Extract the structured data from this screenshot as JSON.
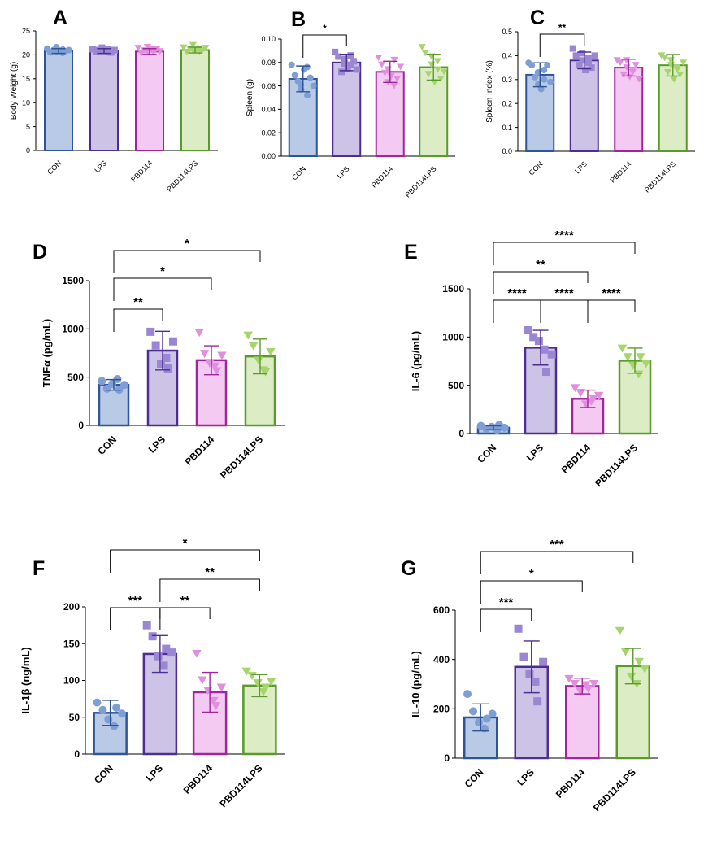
{
  "figure": {
    "groups": [
      "CON",
      "LPS",
      "PBD114",
      "PBD114LPS"
    ],
    "colors": {
      "CON": {
        "fill": "#b9cae6",
        "stroke": "#2f5597",
        "dot": "#7f9fd4"
      },
      "LPS": {
        "fill": "#cdc3e6",
        "stroke": "#4b2e8e",
        "dot": "#9a86d3"
      },
      "PBD114": {
        "fill": "#f4c9f2",
        "stroke": "#a0259a",
        "dot": "#e08fe0"
      },
      "PBD114LPS": {
        "fill": "#dcedc5",
        "stroke": "#5a9a2a",
        "dot": "#a6d56e"
      }
    },
    "markers": {
      "CON": "circle",
      "LPS": "square",
      "PBD114": "triangle-down",
      "PBD114LPS": "triangle-down"
    }
  },
  "chart_data": [
    {
      "id": "A",
      "panel_label": "A",
      "type": "bar",
      "ylabel": "Body Weight (g)",
      "ylim": [
        0,
        25
      ],
      "yticks": [
        0,
        5,
        10,
        15,
        20,
        25
      ],
      "ytick_labels": [
        "0",
        "5",
        "10",
        "15",
        "20",
        "25"
      ],
      "categories": [
        "CON",
        "LPS",
        "PBD114",
        "PBD114LPS"
      ],
      "values": [
        20.8,
        20.8,
        20.7,
        21.0
      ],
      "errors": [
        0.5,
        0.5,
        0.6,
        0.6
      ],
      "points": [
        [
          21.3,
          20.5,
          21.0,
          20.7,
          21.6,
          20.9,
          21.1,
          20.4,
          20.8,
          21.0
        ],
        [
          21.2,
          20.6,
          21.0,
          20.8,
          21.5,
          20.9,
          20.7,
          21.1,
          20.5,
          21.0
        ],
        [
          21.4,
          20.3,
          20.9,
          20.6,
          21.6,
          21.1,
          20.8,
          20.5,
          21.2,
          20.7
        ],
        [
          21.5,
          20.6,
          21.2,
          20.8,
          22.0,
          21.0,
          20.7,
          21.3,
          20.9,
          21.4
        ]
      ],
      "comparisons": []
    },
    {
      "id": "B",
      "panel_label": "B",
      "type": "bar",
      "ylabel": "Spleen (g)",
      "ylim": [
        0,
        0.1
      ],
      "yticks": [
        0,
        0.02,
        0.04,
        0.06,
        0.08,
        0.1
      ],
      "ytick_labels": [
        "0.00",
        "0.02",
        "0.04",
        "0.06",
        "0.08",
        "0.10"
      ],
      "categories": [
        "CON",
        "LPS",
        "PBD114",
        "PBD114LPS"
      ],
      "values": [
        0.066,
        0.08,
        0.072,
        0.076
      ],
      "errors": [
        0.011,
        0.007,
        0.009,
        0.011
      ],
      "points": [
        [
          0.078,
          0.069,
          0.064,
          0.057,
          0.061,
          0.074,
          0.052,
          0.076,
          0.067,
          0.06
        ],
        [
          0.089,
          0.085,
          0.072,
          0.079,
          0.083,
          0.075,
          0.086,
          0.078,
          0.081,
          0.074
        ],
        [
          0.084,
          0.078,
          0.071,
          0.063,
          0.074,
          0.068,
          0.082,
          0.06,
          0.066,
          0.076
        ],
        [
          0.093,
          0.088,
          0.07,
          0.078,
          0.085,
          0.063,
          0.074,
          0.081,
          0.066,
          0.072
        ]
      ],
      "comparisons": [
        {
          "from": 0,
          "to": 1,
          "label": "*",
          "level": 0
        }
      ]
    },
    {
      "id": "C",
      "panel_label": "C",
      "type": "bar",
      "ylabel": "Spleen Index (%)",
      "ylim": [
        0,
        0.5
      ],
      "yticks": [
        0,
        0.1,
        0.2,
        0.3,
        0.4,
        0.5
      ],
      "ytick_labels": [
        "0.0",
        "0.1",
        "0.2",
        "0.3",
        "0.4",
        "0.5"
      ],
      "categories": [
        "CON",
        "LPS",
        "PBD114",
        "PBD114LPS"
      ],
      "values": [
        0.32,
        0.38,
        0.35,
        0.36
      ],
      "errors": [
        0.05,
        0.035,
        0.035,
        0.045
      ],
      "points": [
        [
          0.37,
          0.36,
          0.31,
          0.28,
          0.33,
          0.26,
          0.3,
          0.34,
          0.36,
          0.29
        ],
        [
          0.43,
          0.4,
          0.36,
          0.38,
          0.41,
          0.34,
          0.37,
          0.39,
          0.35,
          0.4
        ],
        [
          0.38,
          0.37,
          0.32,
          0.35,
          0.38,
          0.31,
          0.34,
          0.33,
          0.36,
          0.3
        ],
        [
          0.4,
          0.39,
          0.33,
          0.36,
          0.38,
          0.3,
          0.34,
          0.35,
          0.32,
          0.37
        ]
      ],
      "comparisons": [
        {
          "from": 0,
          "to": 1,
          "label": "**",
          "level": 0
        }
      ]
    },
    {
      "id": "D",
      "panel_label": "D",
      "type": "bar",
      "ylabel": "TNFα (pg/mL)",
      "ylim": [
        0,
        1500
      ],
      "yticks": [
        0,
        500,
        1000,
        1500
      ],
      "ytick_labels": [
        "0",
        "500",
        "1000",
        "1500"
      ],
      "categories": [
        "CON",
        "LPS",
        "PBD114",
        "PBD114LPS"
      ],
      "values": [
        420,
        775,
        675,
        715
      ],
      "errors": [
        55,
        200,
        150,
        180
      ],
      "points": [
        [
          460,
          380,
          430,
          480,
          370,
          420
        ],
        [
          970,
          830,
          640,
          700,
          590,
          870
        ],
        [
          960,
          740,
          640,
          610,
          560,
          720
        ],
        [
          930,
          820,
          670,
          570,
          550,
          760
        ]
      ],
      "comparisons": [
        {
          "from": 0,
          "to": 1,
          "label": "**",
          "level": 0
        },
        {
          "from": 0,
          "to": 2,
          "label": "*",
          "level": 1
        },
        {
          "from": 0,
          "to": 3,
          "label": "*",
          "level": 2
        }
      ]
    },
    {
      "id": "E",
      "panel_label": "E",
      "type": "bar",
      "ylabel": "IL-6 (pg/mL)",
      "ylim": [
        0,
        1500
      ],
      "yticks": [
        0,
        500,
        1000,
        1500
      ],
      "ytick_labels": [
        "0",
        "500",
        "1000",
        "1500"
      ],
      "categories": [
        "CON",
        "LPS",
        "PBD114",
        "PBD114LPS"
      ],
      "values": [
        60,
        890,
        360,
        755
      ],
      "errors": [
        20,
        180,
        90,
        130
      ],
      "points": [
        [
          80,
          50,
          70,
          40,
          90,
          60
        ],
        [
          1070,
          1000,
          960,
          870,
          640,
          820
        ],
        [
          470,
          420,
          300,
          330,
          360,
          390
        ],
        [
          880,
          790,
          700,
          610,
          790,
          720
        ]
      ],
      "comparisons": [
        {
          "from": 0,
          "to": 1,
          "label": "****",
          "level": 0
        },
        {
          "from": 1,
          "to": 2,
          "label": "****",
          "level": 0
        },
        {
          "from": 2,
          "to": 3,
          "label": "****",
          "level": 0
        },
        {
          "from": 0,
          "to": 2,
          "label": "**",
          "level": 1
        },
        {
          "from": 0,
          "to": 3,
          "label": "****",
          "level": 2
        }
      ]
    },
    {
      "id": "F",
      "panel_label": "F",
      "type": "bar",
      "ylabel": "IL-1β (ng/mL)",
      "ylim": [
        0,
        200
      ],
      "yticks": [
        0,
        50,
        100,
        150,
        200
      ],
      "ytick_labels": [
        "0",
        "50",
        "100",
        "150",
        "200"
      ],
      "categories": [
        "CON",
        "LPS",
        "PBD114",
        "PBD114LPS"
      ],
      "values": [
        56,
        136,
        84,
        93
      ],
      "errors": [
        17,
        25,
        27,
        15
      ],
      "points": [
        [
          70,
          60,
          47,
          38,
          63,
          55
        ],
        [
          175,
          160,
          133,
          120,
          143,
          138
        ],
        [
          136,
          100,
          86,
          72,
          65,
          90
        ],
        [
          112,
          106,
          96,
          84,
          90,
          98
        ]
      ],
      "comparisons": [
        {
          "from": 0,
          "to": 1,
          "label": "***",
          "level": 0
        },
        {
          "from": 1,
          "to": 2,
          "label": "**",
          "level": 0
        },
        {
          "from": 1,
          "to": 3,
          "label": "**",
          "level": 1
        },
        {
          "from": 0,
          "to": 3,
          "label": "*",
          "level": 2
        }
      ]
    },
    {
      "id": "G",
      "panel_label": "G",
      "type": "bar",
      "ylabel": "IL-10 (pg/mL)",
      "ylim": [
        0,
        600
      ],
      "yticks": [
        0,
        200,
        400,
        600
      ],
      "ytick_labels": [
        "0",
        "200",
        "400",
        "600"
      ],
      "categories": [
        "CON",
        "LPS",
        "PBD114",
        "PBD114LPS"
      ],
      "values": [
        165,
        370,
        292,
        373
      ],
      "errors": [
        55,
        105,
        32,
        72
      ],
      "points": [
        [
          260,
          190,
          145,
          120,
          160,
          180
        ],
        [
          525,
          410,
          340,
          310,
          230,
          390
        ],
        [
          320,
          300,
          270,
          295,
          280,
          300
        ],
        [
          515,
          430,
          330,
          300,
          390,
          360
        ]
      ],
      "comparisons": [
        {
          "from": 0,
          "to": 1,
          "label": "***",
          "level": 0
        },
        {
          "from": 0,
          "to": 2,
          "label": "*",
          "level": 1
        },
        {
          "from": 0,
          "to": 3,
          "label": "***",
          "level": 2
        }
      ]
    }
  ]
}
